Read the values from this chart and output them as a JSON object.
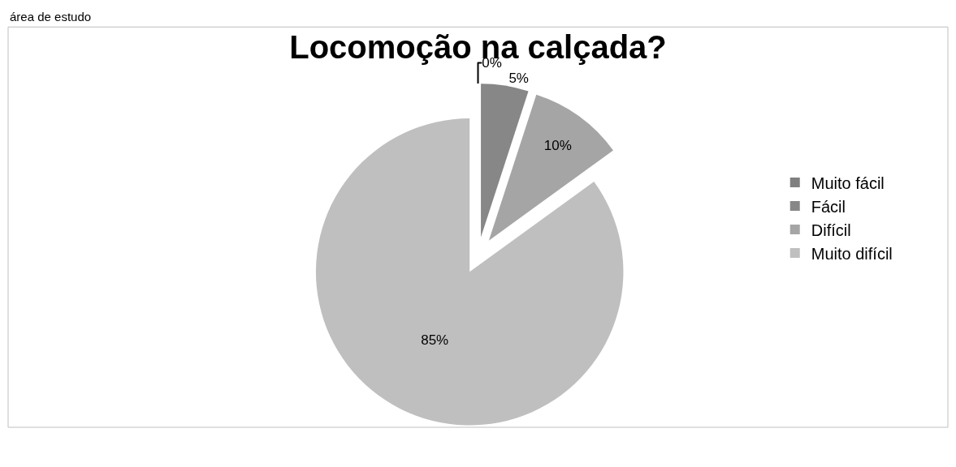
{
  "chart_data": {
    "type": "pie",
    "title": "Locomoção na calçada?",
    "categories": [
      "Muito fácil",
      "Fácil",
      "Difícil",
      "Muito difícil"
    ],
    "values": [
      0,
      5,
      10,
      85
    ],
    "colors": [
      "#7f7f7f",
      "#878787",
      "#a5a5a5",
      "#bfbfbf"
    ],
    "value_labels": [
      "0%",
      "5%",
      "10%",
      "85%"
    ],
    "legend": "right",
    "annotations": [
      "área de estudo"
    ]
  }
}
